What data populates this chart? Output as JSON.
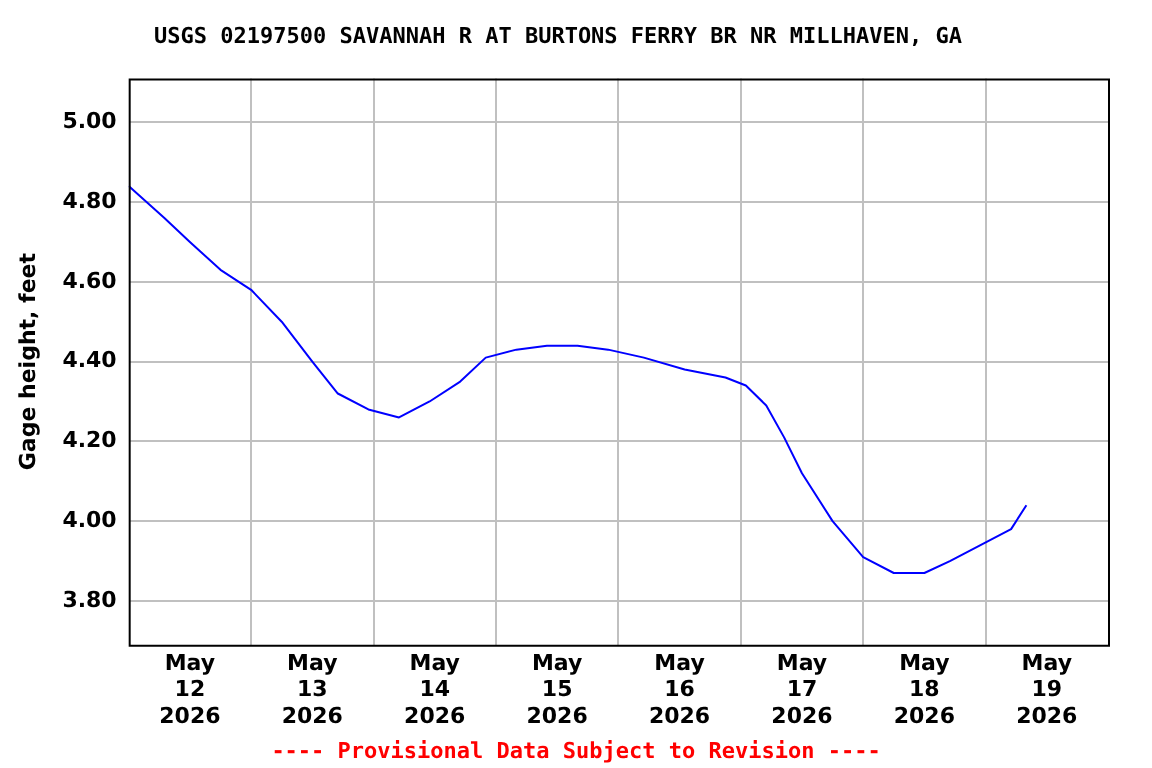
{
  "chart_data": {
    "type": "line",
    "title": "USGS 02197500 SAVANNAH R AT BURTONS FERRY BR NR MILLHAVEN, GA",
    "ylabel": "Gage height, feet",
    "annotations": [
      "---- Provisional Data Subject to Revision ----"
    ],
    "x": [
      "2026-05-12T00:00",
      "2026-05-12T07:00",
      "2026-05-12T12:00",
      "2026-05-12T18:00",
      "2026-05-13T00:00",
      "2026-05-13T06:00",
      "2026-05-13T12:00",
      "2026-05-13T17:00",
      "2026-05-13T23:00",
      "2026-05-14T05:00",
      "2026-05-14T11:00",
      "2026-05-14T17:00",
      "2026-05-14T22:00",
      "2026-05-15T04:00",
      "2026-05-15T10:00",
      "2026-05-15T16:00",
      "2026-05-15T22:00",
      "2026-05-16T05:00",
      "2026-05-16T13:00",
      "2026-05-16T21:00",
      "2026-05-17T01:00",
      "2026-05-17T05:00",
      "2026-05-17T08:30",
      "2026-05-17T12:00",
      "2026-05-17T18:00",
      "2026-05-18T00:00",
      "2026-05-18T06:00",
      "2026-05-18T12:00",
      "2026-05-18T17:00",
      "2026-05-18T23:00",
      "2026-05-19T05:00",
      "2026-05-19T08:00"
    ],
    "series": [
      {
        "color": "#0000ff",
        "values": [
          4.84,
          4.76,
          4.7,
          4.63,
          4.58,
          4.5,
          4.4,
          4.32,
          4.28,
          4.26,
          4.3,
          4.35,
          4.41,
          4.43,
          4.44,
          4.44,
          4.43,
          4.41,
          4.38,
          4.36,
          4.34,
          4.29,
          4.21,
          4.12,
          4.0,
          3.91,
          3.87,
          3.87,
          3.9,
          3.94,
          3.98,
          4.04
        ]
      }
    ],
    "xlim": [
      "2026-05-12T00:00",
      "2026-05-20T00:00"
    ],
    "xticks": [
      {
        "value": "2026-05-12T12:00",
        "label": "May 12 2026"
      },
      {
        "value": "2026-05-13T00:00",
        "label": null
      },
      {
        "value": "2026-05-13T12:00",
        "label": "May 13 2026"
      },
      {
        "value": "2026-05-14T00:00",
        "label": null
      },
      {
        "value": "2026-05-14T12:00",
        "label": "May 14 2026"
      },
      {
        "value": "2026-05-15T00:00",
        "label": null
      },
      {
        "value": "2026-05-15T12:00",
        "label": "May 15 2026"
      },
      {
        "value": "2026-05-16T00:00",
        "label": null
      },
      {
        "value": "2026-05-16T12:00",
        "label": "May 16 2026"
      },
      {
        "value": "2026-05-17T00:00",
        "label": null
      },
      {
        "value": "2026-05-17T12:00",
        "label": "May 17 2026"
      },
      {
        "value": "2026-05-18T00:00",
        "label": null
      },
      {
        "value": "2026-05-18T12:00",
        "label": "May 18 2026"
      },
      {
        "value": "2026-05-19T00:00",
        "label": null
      },
      {
        "value": "2026-05-19T12:00",
        "label": "May 19 2026"
      }
    ],
    "ylim": [
      3.69,
      5.11
    ],
    "yticks": [
      {
        "value": 3.8,
        "label": "3.80"
      },
      {
        "value": 4.0,
        "label": "4.00"
      },
      {
        "value": 4.2,
        "label": "4.20"
      },
      {
        "value": 4.4,
        "label": "4.40"
      },
      {
        "value": 4.6,
        "label": "4.60"
      },
      {
        "value": 4.8,
        "label": "4.80"
      },
      {
        "value": 5.0,
        "label": "5.00"
      }
    ],
    "grid": true,
    "legend": false,
    "marker": "none",
    "line_style": "solid"
  }
}
